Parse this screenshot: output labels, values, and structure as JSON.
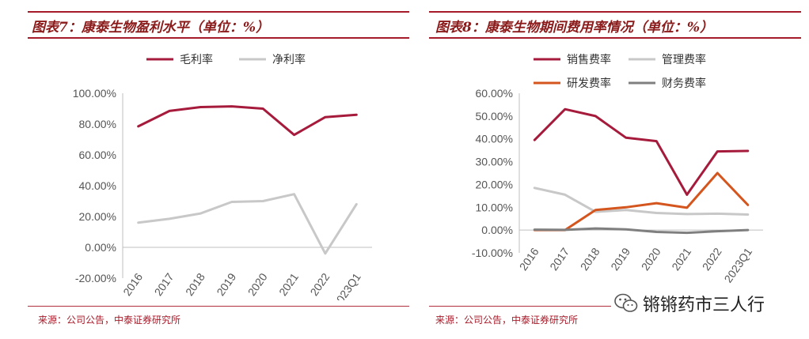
{
  "charts": [
    {
      "title": "图表7：康泰生物盈利水平（单位：%）",
      "source": "来源：公司公告，中泰证券研究所",
      "chart_data": {
        "type": "line",
        "categories": [
          "2016",
          "2017",
          "2018",
          "2019",
          "2020",
          "2021",
          "2022",
          "2023Q1"
        ],
        "series": [
          {
            "name": "毛利率",
            "color": "#a61b3c",
            "values": [
              78.5,
              88.5,
              91.0,
              91.5,
              90.0,
              73.0,
              84.5,
              86.0
            ]
          },
          {
            "name": "净利率",
            "color": "#c8c8c8",
            "values": [
              16.0,
              18.5,
              22.0,
              29.5,
              30.0,
              34.5,
              -4.0,
              28.0
            ]
          }
        ],
        "ylim": [
          -20,
          100
        ],
        "yticks": [
          -20,
          0,
          20,
          40,
          60,
          80,
          100
        ],
        "ytick_labels": [
          "-20.00%",
          "0.00%",
          "20.00%",
          "40.00%",
          "60.00%",
          "80.00%",
          "100.00%"
        ],
        "legend_position": "top"
      }
    },
    {
      "title": "图表8：康泰生物期间费用率情况（单位：%）",
      "source": "来源：公司公告，中泰证券研究所",
      "chart_data": {
        "type": "line",
        "categories": [
          "2016",
          "2017",
          "2018",
          "2019",
          "2020",
          "2021",
          "2022",
          "2023Q1"
        ],
        "series": [
          {
            "name": "销售费率",
            "color": "#a61b3c",
            "values": [
              39.5,
              53.0,
              50.0,
              40.5,
              39.0,
              15.5,
              34.5,
              34.7
            ]
          },
          {
            "name": "管理费率",
            "color": "#c8c8c8",
            "values": [
              18.5,
              15.5,
              8.0,
              8.8,
              7.5,
              7.0,
              7.2,
              6.8
            ]
          },
          {
            "name": "研发费率",
            "color": "#d4551e",
            "values": [
              0.0,
              0.0,
              8.8,
              10.0,
              11.8,
              9.8,
              25.0,
              11.0
            ]
          },
          {
            "name": "财务费率",
            "color": "#7f7f7f",
            "values": [
              0.2,
              0.1,
              0.7,
              0.3,
              -0.8,
              -1.2,
              -0.5,
              0.0
            ]
          }
        ],
        "ylim": [
          -10,
          60
        ],
        "yticks": [
          -10,
          0,
          10,
          20,
          30,
          40,
          50,
          60
        ],
        "ytick_labels": [
          "-10.00%",
          "0.00%",
          "10.00%",
          "20.00%",
          "30.00%",
          "40.00%",
          "50.00%",
          "60.00%"
        ],
        "legend_position": "top"
      }
    }
  ],
  "watermark": {
    "text": "锵锵药市三人行",
    "icon": "wechat-icon"
  }
}
